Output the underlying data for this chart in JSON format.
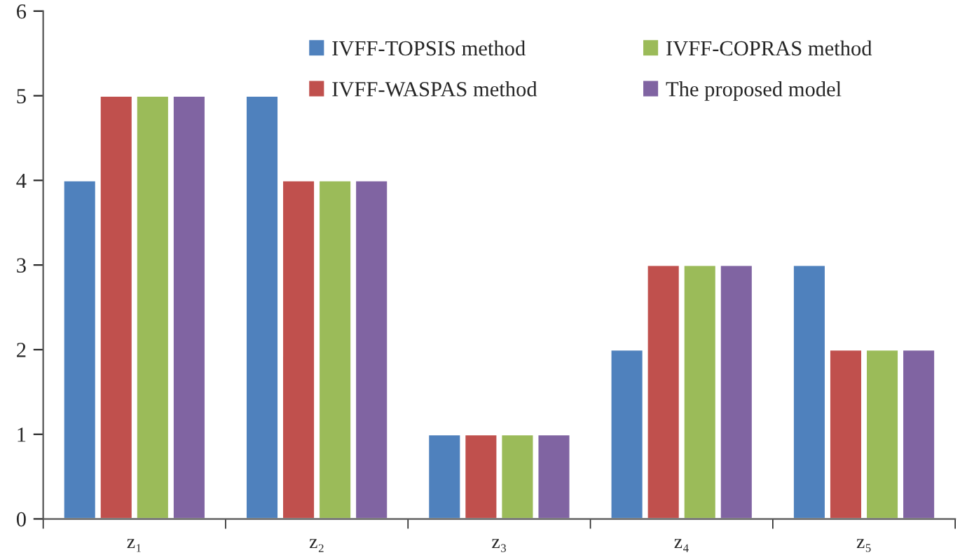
{
  "chart_data": {
    "type": "bar",
    "categories": [
      "z₁",
      "z₂",
      "z₃",
      "z₄",
      "z₅"
    ],
    "series": [
      {
        "name": "IVFF-TOPSIS method",
        "color": "#4f81bd",
        "values": [
          4,
          5,
          1,
          2,
          3
        ]
      },
      {
        "name": "IVFF-WASPAS method",
        "color": "#c0504d",
        "values": [
          5,
          4,
          1,
          3,
          2
        ]
      },
      {
        "name": "IVFF-COPRAS method",
        "color": "#9bbb59",
        "values": [
          5,
          4,
          1,
          3,
          2
        ]
      },
      {
        "name": "The proposed model",
        "color": "#8064a2",
        "values": [
          5,
          4,
          1,
          3,
          2
        ]
      }
    ],
    "ylim": [
      0,
      6
    ],
    "yticks": [
      0,
      1,
      2,
      3,
      4,
      5,
      6
    ],
    "grid": false,
    "legend": "top right"
  }
}
